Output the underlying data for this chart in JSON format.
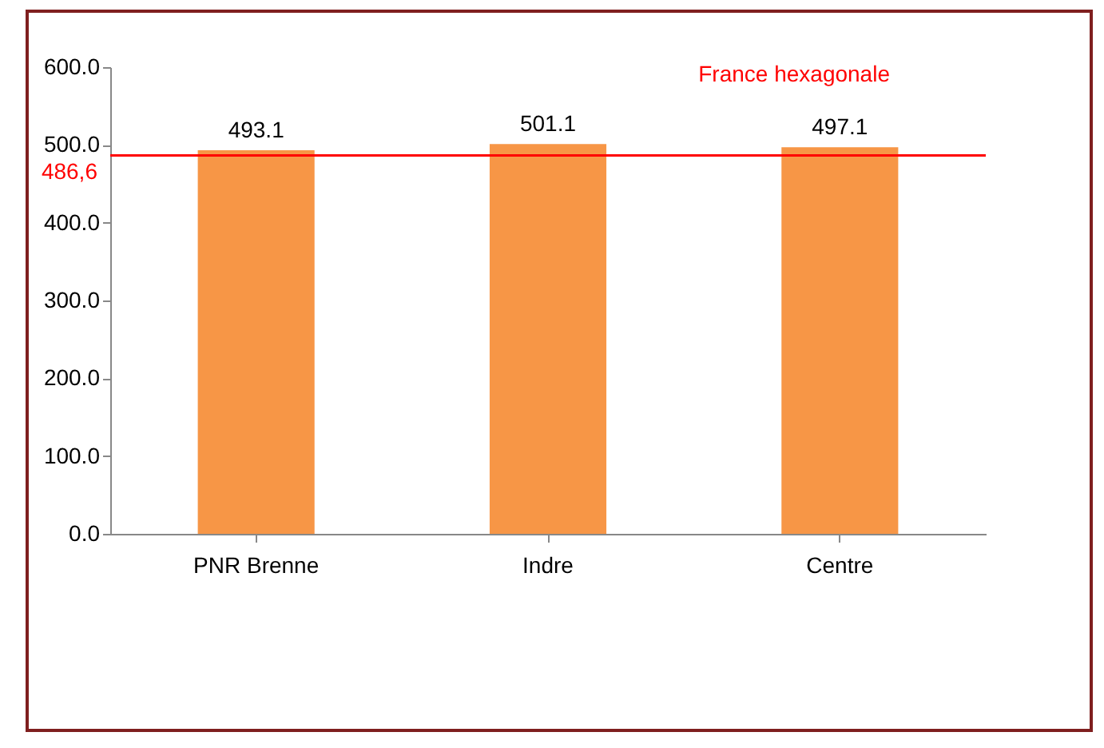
{
  "chart_data": {
    "type": "bar",
    "categories": [
      "PNR Brenne",
      "Indre",
      "Centre"
    ],
    "values": [
      493.1,
      501.1,
      497.1
    ],
    "color": "#f79646",
    "ylim": [
      0,
      600
    ],
    "yticks": [
      {
        "value": 0,
        "label": "0.0"
      },
      {
        "value": 100,
        "label": "100.0"
      },
      {
        "value": 200,
        "label": "200.0"
      },
      {
        "value": 300,
        "label": "300.0"
      },
      {
        "value": 400,
        "label": "400.0"
      },
      {
        "value": 500,
        "label": "500.0"
      },
      {
        "value": 600,
        "label": "600.0"
      }
    ],
    "data_labels": true,
    "grid": false,
    "ref_lines": [
      {
        "axis": "y",
        "value": 486.6,
        "label": "486,6",
        "color": "#ff0000"
      }
    ],
    "annotations": [
      "France hexagonale"
    ]
  }
}
